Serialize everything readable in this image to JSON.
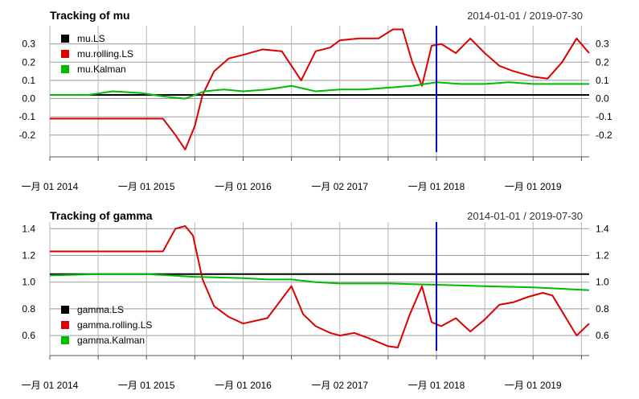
{
  "chart_data": [
    {
      "type": "line",
      "title": "Tracking of mu",
      "date_range": "2014-01-01 / 2019-07-30",
      "x_labels": [
        "一月 01 2014",
        "一月 01 2015",
        "一月 01 2016",
        "一月 02 2017",
        "一月 01 2018",
        "一月 01 2019"
      ],
      "x_label_years": [
        2014.0,
        2015.0,
        2016.0,
        2017.0,
        2018.0,
        2019.0
      ],
      "xlim": [
        2014.0,
        2019.58
      ],
      "ylim": [
        -0.32,
        0.4
      ],
      "y_ticks": [
        -0.2,
        -0.1,
        0.0,
        0.1,
        0.2,
        0.3
      ],
      "y_tick_labels": [
        "-0.2",
        "-0.1",
        "0.0",
        "0.1",
        "0.2",
        "0.3"
      ],
      "vline_x": 2018.0,
      "vline_color": "#0000CC",
      "legend_position": "top-left",
      "series": [
        {
          "name": "mu.LS",
          "color": "#000000",
          "x": [
            2014.0,
            2019.58
          ],
          "values": [
            0.02,
            0.02
          ]
        },
        {
          "name": "mu.rolling.LS",
          "color": "#DD0000",
          "x": [
            2014.0,
            2015.17,
            2015.3,
            2015.4,
            2015.5,
            2015.58,
            2015.7,
            2015.85,
            2016.0,
            2016.2,
            2016.4,
            2016.6,
            2016.75,
            2016.9,
            2017.0,
            2017.2,
            2017.4,
            2017.55,
            2017.65,
            2017.75,
            2017.85,
            2017.95,
            2018.05,
            2018.2,
            2018.35,
            2018.5,
            2018.65,
            2018.8,
            2019.0,
            2019.15,
            2019.3,
            2019.45,
            2019.58
          ],
          "values": [
            -0.11,
            -0.11,
            -0.2,
            -0.28,
            -0.15,
            0.02,
            0.15,
            0.22,
            0.24,
            0.27,
            0.26,
            0.1,
            0.26,
            0.28,
            0.32,
            0.33,
            0.33,
            0.38,
            0.38,
            0.2,
            0.07,
            0.29,
            0.3,
            0.25,
            0.33,
            0.25,
            0.18,
            0.15,
            0.12,
            0.11,
            0.2,
            0.33,
            0.25
          ]
        },
        {
          "name": "mu.Kalman",
          "color": "#00BB00",
          "x": [
            2014.0,
            2014.4,
            2014.65,
            2014.95,
            2015.2,
            2015.4,
            2015.6,
            2015.8,
            2016.0,
            2016.25,
            2016.5,
            2016.75,
            2017.0,
            2017.25,
            2017.5,
            2017.75,
            2018.0,
            2018.25,
            2018.5,
            2018.75,
            2019.0,
            2019.25,
            2019.58
          ],
          "values": [
            0.02,
            0.02,
            0.04,
            0.03,
            0.01,
            0.0,
            0.04,
            0.05,
            0.04,
            0.05,
            0.07,
            0.04,
            0.05,
            0.05,
            0.06,
            0.07,
            0.09,
            0.08,
            0.08,
            0.09,
            0.08,
            0.08,
            0.08
          ]
        }
      ]
    },
    {
      "type": "line",
      "title": "Tracking of gamma",
      "date_range": "2014-01-01 / 2019-07-30",
      "x_labels": [
        "一月 01 2014",
        "一月 01 2015",
        "一月 01 2016",
        "一月 02 2017",
        "一月 01 2018",
        "一月 01 2019"
      ],
      "x_label_years": [
        2014.0,
        2015.0,
        2016.0,
        2017.0,
        2018.0,
        2019.0
      ],
      "xlim": [
        2014.0,
        2019.58
      ],
      "ylim": [
        0.45,
        1.45
      ],
      "y_ticks": [
        0.6,
        0.8,
        1.0,
        1.2,
        1.4
      ],
      "y_tick_labels": [
        "0.6",
        "0.8",
        "1.0",
        "1.2",
        "1.4"
      ],
      "vline_x": 2018.0,
      "vline_color": "#0000CC",
      "legend_position": "bottom-left",
      "series": [
        {
          "name": "gamma.LS",
          "color": "#000000",
          "x": [
            2014.0,
            2019.58
          ],
          "values": [
            1.06,
            1.06
          ]
        },
        {
          "name": "gamma.rolling.LS",
          "color": "#DD0000",
          "x": [
            2014.0,
            2015.17,
            2015.3,
            2015.4,
            2015.48,
            2015.58,
            2015.7,
            2015.85,
            2016.0,
            2016.25,
            2016.5,
            2016.62,
            2016.75,
            2016.9,
            2017.0,
            2017.15,
            2017.3,
            2017.5,
            2017.6,
            2017.72,
            2017.85,
            2017.95,
            2018.05,
            2018.2,
            2018.35,
            2018.5,
            2018.65,
            2018.8,
            2018.95,
            2019.1,
            2019.2,
            2019.3,
            2019.45,
            2019.58
          ],
          "values": [
            1.23,
            1.23,
            1.4,
            1.42,
            1.35,
            1.02,
            0.82,
            0.74,
            0.69,
            0.73,
            0.97,
            0.76,
            0.67,
            0.62,
            0.6,
            0.62,
            0.58,
            0.52,
            0.51,
            0.75,
            0.97,
            0.7,
            0.67,
            0.73,
            0.63,
            0.72,
            0.83,
            0.85,
            0.89,
            0.92,
            0.9,
            0.78,
            0.6,
            0.69
          ]
        },
        {
          "name": "gamma.Kalman",
          "color": "#00BB00",
          "x": [
            2014.0,
            2014.5,
            2015.0,
            2015.5,
            2016.0,
            2016.25,
            2016.5,
            2016.75,
            2017.0,
            2017.5,
            2018.0,
            2018.5,
            2019.0,
            2019.3,
            2019.58
          ],
          "values": [
            1.05,
            1.06,
            1.06,
            1.04,
            1.03,
            1.02,
            1.02,
            1.0,
            0.99,
            0.99,
            0.98,
            0.97,
            0.96,
            0.95,
            0.94
          ]
        }
      ]
    }
  ]
}
